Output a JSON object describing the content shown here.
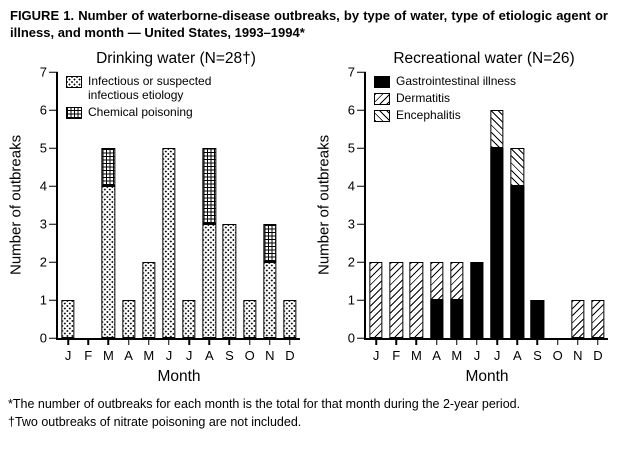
{
  "figure": {
    "caption": "FIGURE 1. Number of waterborne-disease outbreaks, by type of water, type of etiologic agent or illness, and month — United States, 1993–1994*",
    "footnotes": [
      "*The number of outbreaks for each month is the total for that month during the 2-year period.",
      "†Two outbreaks of nitrate poisoning are not included."
    ]
  },
  "chart_data": [
    {
      "type": "bar",
      "stacked": true,
      "title": "Drinking water (N=28†)",
      "xlabel": "Month",
      "ylabel": "Number of outbreaks",
      "ylim": [
        0,
        7
      ],
      "yticks": [
        0,
        1,
        2,
        3,
        4,
        5,
        6,
        7
      ],
      "grid": false,
      "legend_position": "top-left-inside",
      "categories": [
        "J",
        "F",
        "M",
        "A",
        "M",
        "J",
        "J",
        "A",
        "S",
        "O",
        "N",
        "D"
      ],
      "series": [
        {
          "name": "Infectious or suspected infectious etiology",
          "pattern": "dots",
          "values": [
            1,
            0,
            4,
            1,
            2,
            5,
            1,
            3,
            3,
            1,
            2,
            1
          ]
        },
        {
          "name": "Chemical poisoning",
          "pattern": "grid",
          "values": [
            0,
            0,
            1,
            0,
            0,
            0,
            0,
            2,
            0,
            0,
            1,
            0
          ]
        }
      ],
      "monthly_totals": [
        1,
        0,
        5,
        1,
        2,
        5,
        1,
        5,
        3,
        1,
        3,
        1
      ]
    },
    {
      "type": "bar",
      "stacked": true,
      "title": "Recreational water (N=26)",
      "xlabel": "Month",
      "ylabel": "Number of outbreaks",
      "ylim": [
        0,
        7
      ],
      "yticks": [
        0,
        1,
        2,
        3,
        4,
        5,
        6,
        7
      ],
      "grid": false,
      "legend_position": "top-left-inside",
      "categories": [
        "J",
        "F",
        "M",
        "A",
        "M",
        "J",
        "J",
        "A",
        "S",
        "O",
        "N",
        "D"
      ],
      "series": [
        {
          "name": "Gastrointestinal illness",
          "pattern": "solid",
          "values": [
            0,
            0,
            0,
            1,
            1,
            2,
            5,
            4,
            1,
            0,
            0,
            0
          ]
        },
        {
          "name": "Dermatitis",
          "pattern": "diag-up",
          "values": [
            2,
            2,
            2,
            1,
            1,
            0,
            0,
            0,
            0,
            0,
            1,
            1
          ]
        },
        {
          "name": "Encephalitis",
          "pattern": "diag-down",
          "values": [
            0,
            0,
            0,
            0,
            0,
            0,
            1,
            1,
            0,
            0,
            0,
            0
          ]
        }
      ],
      "monthly_totals": [
        2,
        2,
        2,
        2,
        2,
        2,
        6,
        5,
        1,
        0,
        1,
        1
      ]
    }
  ]
}
